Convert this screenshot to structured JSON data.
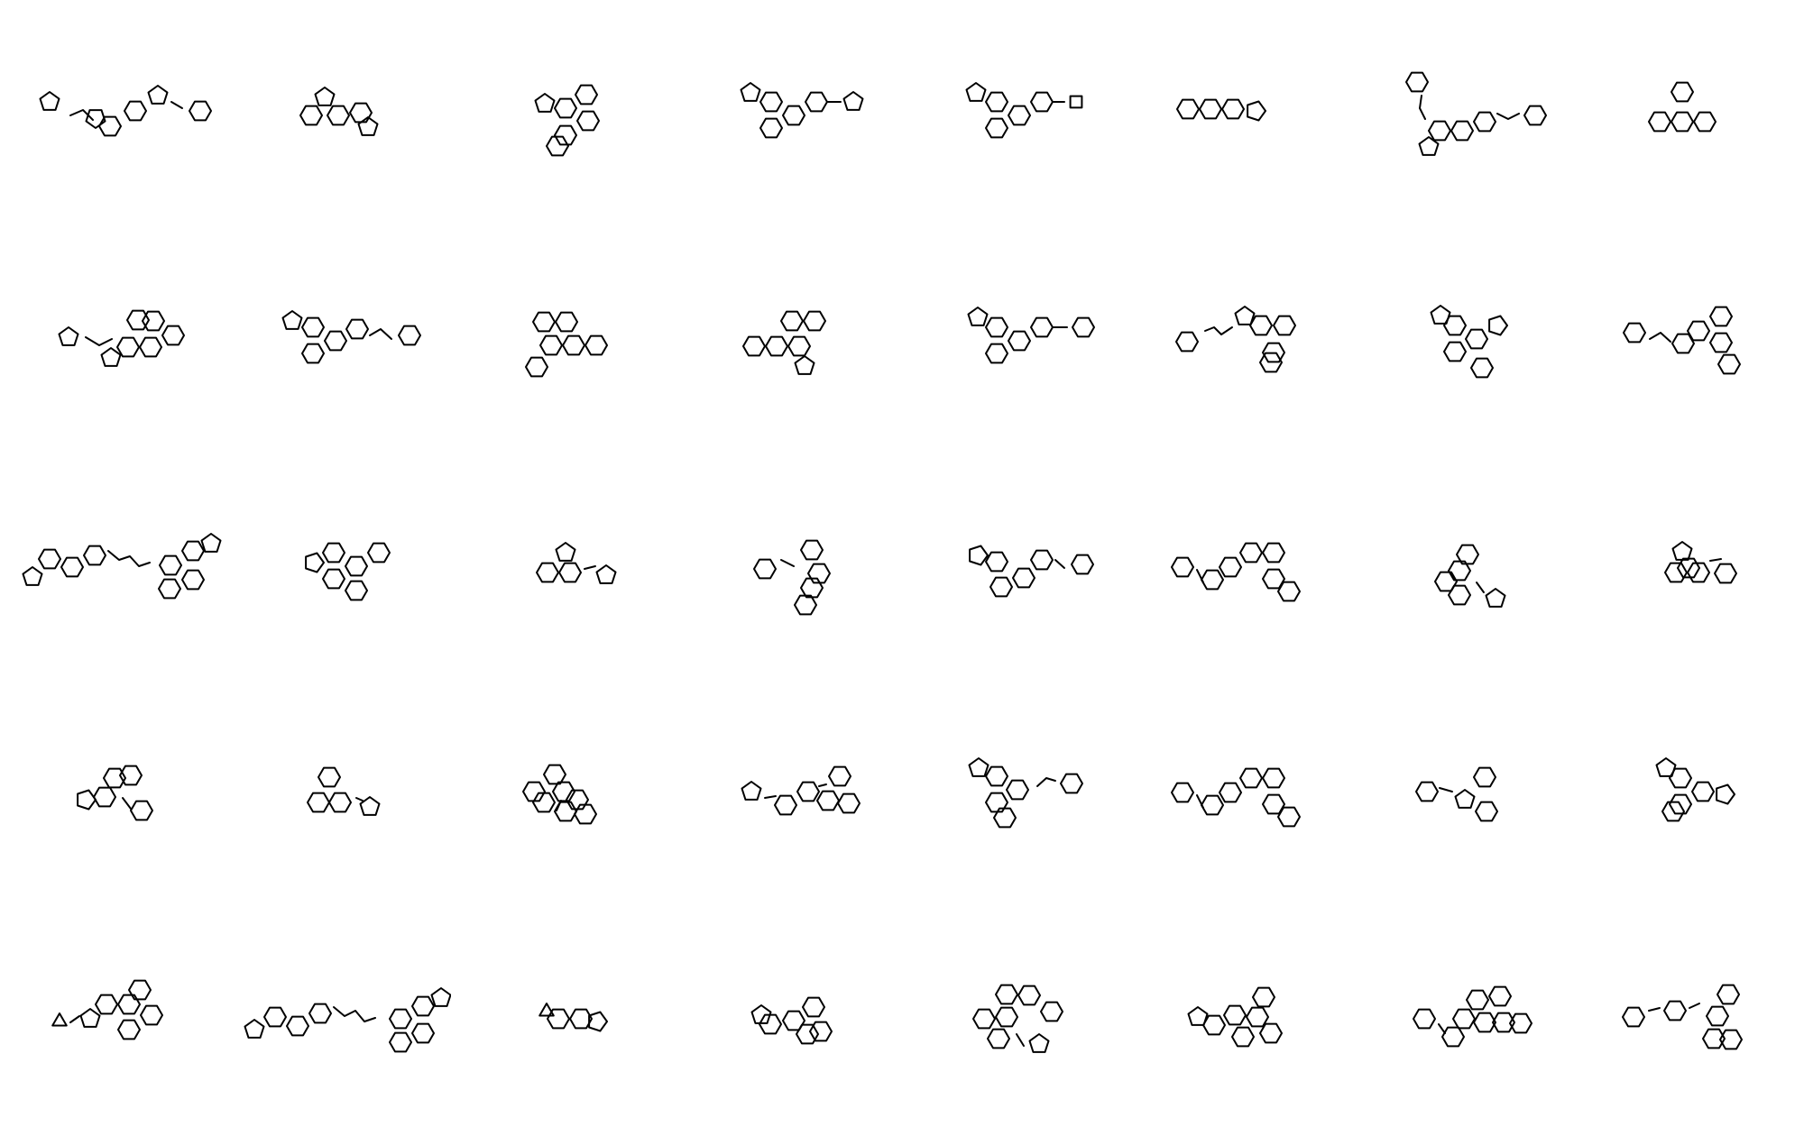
{
  "title": "",
  "grid": {
    "rows": 5,
    "columns": 8
  },
  "colors": {
    "background": "#ffffff",
    "bond": "#000000"
  },
  "molecules": [
    {
      "name": "molecule-r1-c1",
      "label": ""
    },
    {
      "name": "molecule-r1-c2",
      "label": ""
    },
    {
      "name": "molecule-r1-c3",
      "label": ""
    },
    {
      "name": "molecule-r1-c4",
      "label": ""
    },
    {
      "name": "molecule-r1-c5",
      "label": ""
    },
    {
      "name": "molecule-r1-c6",
      "label": ""
    },
    {
      "name": "molecule-r1-c7",
      "label": ""
    },
    {
      "name": "molecule-r1-c8",
      "label": ""
    },
    {
      "name": "molecule-r2-c1",
      "label": ""
    },
    {
      "name": "molecule-r2-c2",
      "label": ""
    },
    {
      "name": "molecule-r2-c3",
      "label": ""
    },
    {
      "name": "molecule-r2-c4",
      "label": ""
    },
    {
      "name": "molecule-r2-c5",
      "label": ""
    },
    {
      "name": "molecule-r2-c6",
      "label": ""
    },
    {
      "name": "molecule-r2-c7",
      "label": ""
    },
    {
      "name": "molecule-r2-c8",
      "label": ""
    },
    {
      "name": "molecule-r3-c1",
      "label": ""
    },
    {
      "name": "molecule-r3-c2",
      "label": ""
    },
    {
      "name": "molecule-r3-c3",
      "label": ""
    },
    {
      "name": "molecule-r3-c4",
      "label": ""
    },
    {
      "name": "molecule-r3-c5",
      "label": ""
    },
    {
      "name": "molecule-r3-c6",
      "label": ""
    },
    {
      "name": "molecule-r3-c7",
      "label": ""
    },
    {
      "name": "molecule-r3-c8",
      "label": ""
    },
    {
      "name": "molecule-r4-c1",
      "label": ""
    },
    {
      "name": "molecule-r4-c2",
      "label": ""
    },
    {
      "name": "molecule-r4-c3",
      "label": ""
    },
    {
      "name": "molecule-r4-c4",
      "label": ""
    },
    {
      "name": "molecule-r4-c5",
      "label": ""
    },
    {
      "name": "molecule-r4-c6",
      "label": ""
    },
    {
      "name": "molecule-r4-c7",
      "label": ""
    },
    {
      "name": "molecule-r4-c8",
      "label": ""
    },
    {
      "name": "molecule-r5-c1",
      "label": ""
    },
    {
      "name": "molecule-r5-c2",
      "label": ""
    },
    {
      "name": "molecule-r5-c3",
      "label": ""
    },
    {
      "name": "molecule-r5-c4",
      "label": ""
    },
    {
      "name": "molecule-r5-c5",
      "label": ""
    },
    {
      "name": "molecule-r5-c6",
      "label": ""
    },
    {
      "name": "molecule-r5-c7",
      "label": ""
    },
    {
      "name": "molecule-r5-c8",
      "label": ""
    }
  ]
}
